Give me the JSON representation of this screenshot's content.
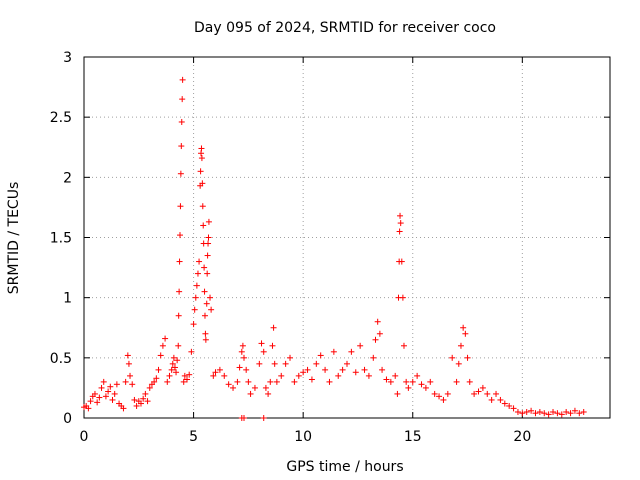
{
  "chart_data": {
    "type": "scatter",
    "title": "Day 095 of 2024, SRMTID for receiver coco",
    "xlabel": "GPS time / hours",
    "ylabel": "SRMTID / TECUs",
    "xlim": [
      0,
      24
    ],
    "ylim": [
      0,
      3
    ],
    "xticks": [
      0,
      5,
      10,
      15,
      20
    ],
    "xtick_labels": [
      "0",
      "5",
      "10",
      "15",
      "20"
    ],
    "yticks": [
      0,
      0.5,
      1,
      1.5,
      2,
      2.5,
      3
    ],
    "ytick_labels": [
      "0",
      "0.5",
      "1",
      "1.5",
      "2",
      "2.5",
      "3"
    ],
    "grid": true,
    "marker": "+",
    "series": [
      {
        "name": "SRMTID",
        "color": "#ff0000",
        "points": [
          [
            0.0,
            0.09
          ],
          [
            0.1,
            0.1
          ],
          [
            0.2,
            0.08
          ],
          [
            0.3,
            0.14
          ],
          [
            0.4,
            0.18
          ],
          [
            0.5,
            0.2
          ],
          [
            0.6,
            0.13
          ],
          [
            0.7,
            0.17
          ],
          [
            0.8,
            0.25
          ],
          [
            0.9,
            0.3
          ],
          [
            1.0,
            0.18
          ],
          [
            1.1,
            0.22
          ],
          [
            1.2,
            0.26
          ],
          [
            1.3,
            0.15
          ],
          [
            1.4,
            0.2
          ],
          [
            1.5,
            0.28
          ],
          [
            1.6,
            0.12
          ],
          [
            1.7,
            0.1
          ],
          [
            1.8,
            0.08
          ],
          [
            1.9,
            0.3
          ],
          [
            2.0,
            0.52
          ],
          [
            2.05,
            0.45
          ],
          [
            2.1,
            0.35
          ],
          [
            2.2,
            0.28
          ],
          [
            2.3,
            0.15
          ],
          [
            2.4,
            0.1
          ],
          [
            2.5,
            0.14
          ],
          [
            2.6,
            0.12
          ],
          [
            2.7,
            0.16
          ],
          [
            2.8,
            0.2
          ],
          [
            2.9,
            0.14
          ],
          [
            3.0,
            0.25
          ],
          [
            3.1,
            0.28
          ],
          [
            3.2,
            0.3
          ],
          [
            3.3,
            0.33
          ],
          [
            3.4,
            0.4
          ],
          [
            3.5,
            0.52
          ],
          [
            3.6,
            0.6
          ],
          [
            3.7,
            0.66
          ],
          [
            3.8,
            0.3
          ],
          [
            3.9,
            0.35
          ],
          [
            4.0,
            0.4
          ],
          [
            4.05,
            0.45
          ],
          [
            4.1,
            0.5
          ],
          [
            4.15,
            0.42
          ],
          [
            4.2,
            0.38
          ],
          [
            4.25,
            0.48
          ],
          [
            4.3,
            0.6
          ],
          [
            4.32,
            0.85
          ],
          [
            4.34,
            1.05
          ],
          [
            4.36,
            1.3
          ],
          [
            4.38,
            1.52
          ],
          [
            4.4,
            1.76
          ],
          [
            4.42,
            2.03
          ],
          [
            4.44,
            2.26
          ],
          [
            4.46,
            2.46
          ],
          [
            4.48,
            2.65
          ],
          [
            4.5,
            2.81
          ],
          [
            4.55,
            0.3
          ],
          [
            4.6,
            0.35
          ],
          [
            4.7,
            0.32
          ],
          [
            4.8,
            0.36
          ],
          [
            4.9,
            0.55
          ],
          [
            5.0,
            0.78
          ],
          [
            5.05,
            0.9
          ],
          [
            5.1,
            1.0
          ],
          [
            5.15,
            1.1
          ],
          [
            5.2,
            1.2
          ],
          [
            5.25,
            1.3
          ],
          [
            5.3,
            1.93
          ],
          [
            5.32,
            2.05
          ],
          [
            5.34,
            2.2
          ],
          [
            5.36,
            2.24
          ],
          [
            5.38,
            2.16
          ],
          [
            5.4,
            1.95
          ],
          [
            5.42,
            1.76
          ],
          [
            5.44,
            1.6
          ],
          [
            5.46,
            1.45
          ],
          [
            5.48,
            1.25
          ],
          [
            5.5,
            1.05
          ],
          [
            5.52,
            0.85
          ],
          [
            5.54,
            0.7
          ],
          [
            5.56,
            0.65
          ],
          [
            5.6,
            0.95
          ],
          [
            5.62,
            1.2
          ],
          [
            5.64,
            1.35
          ],
          [
            5.66,
            1.45
          ],
          [
            5.68,
            1.5
          ],
          [
            5.7,
            1.63
          ],
          [
            5.75,
            1.0
          ],
          [
            5.8,
            0.9
          ],
          [
            5.9,
            0.35
          ],
          [
            6.0,
            0.38
          ],
          [
            6.2,
            0.4
          ],
          [
            6.4,
            0.35
          ],
          [
            6.6,
            0.28
          ],
          [
            6.8,
            0.25
          ],
          [
            7.0,
            0.3
          ],
          [
            7.1,
            0.42
          ],
          [
            7.2,
            0.55
          ],
          [
            7.25,
            0.6
          ],
          [
            7.3,
            0.5
          ],
          [
            7.4,
            0.4
          ],
          [
            7.2,
            0.0
          ],
          [
            7.3,
            0.0
          ],
          [
            7.5,
            0.3
          ],
          [
            7.6,
            0.2
          ],
          [
            7.8,
            0.25
          ],
          [
            8.0,
            0.45
          ],
          [
            8.1,
            0.62
          ],
          [
            8.2,
            0.55
          ],
          [
            8.2,
            0.0
          ],
          [
            8.3,
            0.25
          ],
          [
            8.4,
            0.2
          ],
          [
            8.5,
            0.3
          ],
          [
            8.6,
            0.6
          ],
          [
            8.65,
            0.75
          ],
          [
            8.7,
            0.45
          ],
          [
            8.8,
            0.3
          ],
          [
            9.0,
            0.35
          ],
          [
            9.2,
            0.45
          ],
          [
            9.4,
            0.5
          ],
          [
            9.6,
            0.3
          ],
          [
            9.8,
            0.35
          ],
          [
            10.0,
            0.38
          ],
          [
            10.2,
            0.4
          ],
          [
            10.4,
            0.32
          ],
          [
            10.6,
            0.45
          ],
          [
            10.8,
            0.52
          ],
          [
            11.0,
            0.4
          ],
          [
            11.2,
            0.3
          ],
          [
            11.4,
            0.55
          ],
          [
            11.6,
            0.35
          ],
          [
            11.8,
            0.4
          ],
          [
            12.0,
            0.45
          ],
          [
            12.2,
            0.55
          ],
          [
            12.4,
            0.38
          ],
          [
            12.6,
            0.6
          ],
          [
            12.8,
            0.4
          ],
          [
            13.0,
            0.35
          ],
          [
            13.2,
            0.5
          ],
          [
            13.3,
            0.65
          ],
          [
            13.4,
            0.8
          ],
          [
            13.5,
            0.7
          ],
          [
            13.6,
            0.4
          ],
          [
            13.8,
            0.32
          ],
          [
            14.0,
            0.3
          ],
          [
            14.2,
            0.35
          ],
          [
            14.3,
            0.2
          ],
          [
            14.35,
            1.0
          ],
          [
            14.38,
            1.3
          ],
          [
            14.4,
            1.55
          ],
          [
            14.42,
            1.68
          ],
          [
            14.45,
            1.62
          ],
          [
            14.5,
            1.3
          ],
          [
            14.55,
            1.0
          ],
          [
            14.6,
            0.6
          ],
          [
            14.7,
            0.3
          ],
          [
            14.8,
            0.25
          ],
          [
            15.0,
            0.3
          ],
          [
            15.2,
            0.35
          ],
          [
            15.4,
            0.28
          ],
          [
            15.6,
            0.25
          ],
          [
            15.8,
            0.3
          ],
          [
            16.0,
            0.2
          ],
          [
            16.2,
            0.18
          ],
          [
            16.4,
            0.15
          ],
          [
            16.6,
            0.2
          ],
          [
            16.8,
            0.5
          ],
          [
            17.0,
            0.3
          ],
          [
            17.1,
            0.45
          ],
          [
            17.2,
            0.6
          ],
          [
            17.3,
            0.75
          ],
          [
            17.4,
            0.7
          ],
          [
            17.5,
            0.5
          ],
          [
            17.6,
            0.3
          ],
          [
            17.8,
            0.2
          ],
          [
            18.0,
            0.22
          ],
          [
            18.2,
            0.25
          ],
          [
            18.4,
            0.2
          ],
          [
            18.6,
            0.15
          ],
          [
            18.8,
            0.2
          ],
          [
            19.0,
            0.15
          ],
          [
            19.2,
            0.12
          ],
          [
            19.4,
            0.1
          ],
          [
            19.6,
            0.08
          ],
          [
            19.8,
            0.05
          ],
          [
            20.0,
            0.04
          ],
          [
            20.2,
            0.05
          ],
          [
            20.4,
            0.06
          ],
          [
            20.6,
            0.04
          ],
          [
            20.8,
            0.05
          ],
          [
            21.0,
            0.04
          ],
          [
            21.2,
            0.03
          ],
          [
            21.4,
            0.05
          ],
          [
            21.6,
            0.04
          ],
          [
            21.8,
            0.03
          ],
          [
            22.0,
            0.05
          ],
          [
            22.2,
            0.04
          ],
          [
            22.4,
            0.06
          ],
          [
            22.6,
            0.04
          ],
          [
            22.8,
            0.05
          ]
        ]
      }
    ]
  }
}
